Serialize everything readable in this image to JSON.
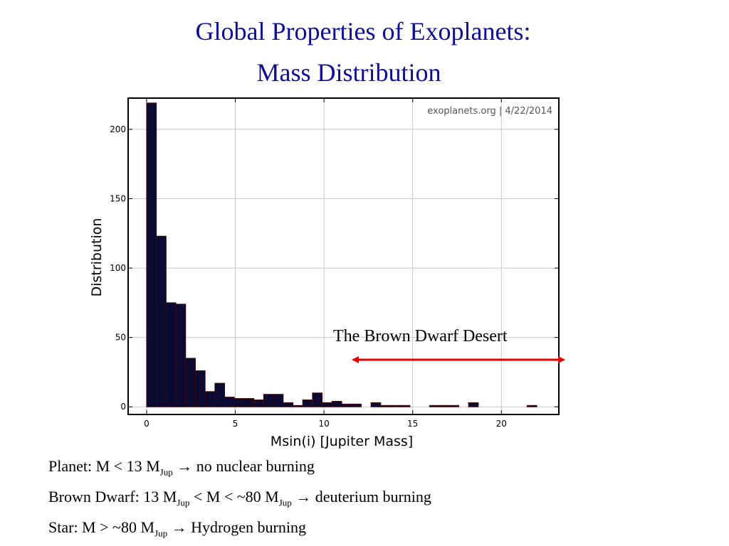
{
  "slide": {
    "title_line1": "Global Properties of Exoplanets:",
    "title_line2": "Mass Distribution"
  },
  "chart_data": {
    "type": "bar",
    "xlabel": "Msin(i) [Jupiter Mass]",
    "ylabel": "Distribution",
    "xlim": [
      -1,
      23.2
    ],
    "ylim": [
      -5,
      222
    ],
    "xticks": [
      0,
      5,
      10,
      15,
      20
    ],
    "yticks": [
      0,
      50,
      100,
      150,
      200
    ],
    "grid": true,
    "watermark": "exoplanets.org | 4/22/2014",
    "bin_width": 0.55,
    "bins": [
      {
        "x": 0.0,
        "value": 219
      },
      {
        "x": 0.55,
        "value": 123
      },
      {
        "x": 1.1,
        "value": 75
      },
      {
        "x": 1.65,
        "value": 74
      },
      {
        "x": 2.2,
        "value": 35
      },
      {
        "x": 2.75,
        "value": 26
      },
      {
        "x": 3.3,
        "value": 11
      },
      {
        "x": 3.85,
        "value": 17
      },
      {
        "x": 4.4,
        "value": 7
      },
      {
        "x": 4.95,
        "value": 6
      },
      {
        "x": 5.5,
        "value": 6
      },
      {
        "x": 6.05,
        "value": 5
      },
      {
        "x": 6.6,
        "value": 9
      },
      {
        "x": 7.15,
        "value": 9
      },
      {
        "x": 7.7,
        "value": 3
      },
      {
        "x": 8.25,
        "value": 1
      },
      {
        "x": 8.8,
        "value": 5
      },
      {
        "x": 9.35,
        "value": 10
      },
      {
        "x": 9.9,
        "value": 3
      },
      {
        "x": 10.45,
        "value": 4
      },
      {
        "x": 11.0,
        "value": 2
      },
      {
        "x": 11.55,
        "value": 2
      },
      {
        "x": 12.1,
        "value": 0
      },
      {
        "x": 12.65,
        "value": 3
      },
      {
        "x": 13.2,
        "value": 1
      },
      {
        "x": 13.75,
        "value": 1
      },
      {
        "x": 14.3,
        "value": 1
      },
      {
        "x": 14.85,
        "value": 0
      },
      {
        "x": 15.4,
        "value": 0
      },
      {
        "x": 15.95,
        "value": 1
      },
      {
        "x": 16.5,
        "value": 1
      },
      {
        "x": 17.05,
        "value": 1
      },
      {
        "x": 17.6,
        "value": 0
      },
      {
        "x": 18.15,
        "value": 3
      },
      {
        "x": 21.45,
        "value": 1
      }
    ],
    "annotation": {
      "text": "The Brown Dwarf Desert",
      "color": "#e60000"
    },
    "bar_color": "#0a0a33"
  },
  "notes": {
    "planet": {
      "prefix": "Planet: M ",
      "lt": "<",
      "mid": " 13 M",
      "sub": "Jup",
      "suffix": " → no nuclear burning"
    },
    "brown_dwarf": {
      "prefix": "Brown Dwarf: 13 M",
      "sub1": "Jup",
      "mid1": " ",
      "lt1": "<",
      "mid2": " M ",
      "lt2": "<",
      "mid3": " ~80 M",
      "sub2": "Jup",
      "suffix": " → deuterium burning"
    },
    "star": {
      "prefix": "Star:  M ",
      "gt": ">",
      "mid": " ~80 M",
      "sub": "Jup",
      "suffix": " → Hydrogen burning"
    }
  }
}
